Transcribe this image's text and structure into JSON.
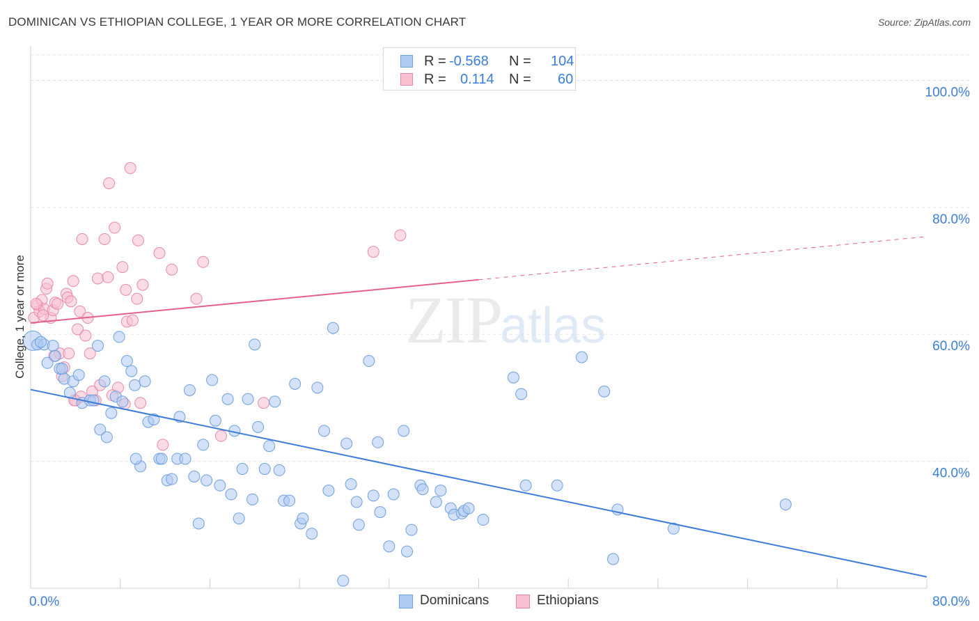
{
  "header": {
    "title": "DOMINICAN VS ETHIOPIAN COLLEGE, 1 YEAR OR MORE CORRELATION CHART",
    "source": "Source: ZipAtlas.com"
  },
  "legend_top": {
    "rows": [
      {
        "r_label": "R =",
        "r_value": "-0.568",
        "n_label": "N =",
        "n_value": "104"
      },
      {
        "r_label": "R =",
        "r_value": "0.114",
        "n_label": "N =",
        "n_value": "60"
      }
    ]
  },
  "legend_bottom": {
    "dominicans": "Dominicans",
    "ethiopians": "Ethiopians"
  },
  "colors": {
    "blue_fill": "#aecbf2",
    "blue_stroke": "#6f9fe0",
    "blue_line": "#3b7dd8",
    "pink_fill": "#f7bfd0",
    "pink_stroke": "#e889a8",
    "pink_line": "#e4608a",
    "axis_text": "#3b7dd8",
    "grid": "#e3e3e3"
  },
  "watermark": {
    "zip": "ZIP",
    "atlas": "atlas"
  },
  "chart_data": {
    "type": "scatter",
    "title": "DOMINICAN VS ETHIOPIAN COLLEGE, 1 YEAR OR MORE CORRELATION CHART",
    "xlabel": "",
    "ylabel": "College, 1 year or more",
    "xlim": [
      0,
      80
    ],
    "ylim": [
      20,
      104
    ],
    "x_tick_labels": [
      "0.0%",
      "80.0%"
    ],
    "y_ticks": [
      40,
      60,
      80,
      100
    ],
    "y_tick_labels": [
      "40.0%",
      "60.0%",
      "80.0%",
      "100.0%"
    ],
    "grid": true,
    "legend_position": "top-center",
    "series": [
      {
        "name": "Dominicans",
        "r": -0.568,
        "n": 104,
        "trend": {
          "x0": 0,
          "y0": 51.3,
          "x1": 80,
          "y1": 21.8
        },
        "points": [
          [
            0.2,
            59.0
          ],
          [
            0.6,
            58.4
          ],
          [
            1.2,
            58.4
          ],
          [
            1.5,
            55.5
          ],
          [
            2.0,
            58.2
          ],
          [
            2.2,
            56.6
          ],
          [
            2.6,
            54.6
          ],
          [
            3.0,
            53.0
          ],
          [
            3.5,
            50.8
          ],
          [
            3.8,
            52.6
          ],
          [
            4.3,
            53.6
          ],
          [
            4.6,
            49.2
          ],
          [
            5.3,
            49.6
          ],
          [
            6.0,
            58.2
          ],
          [
            6.2,
            45.0
          ],
          [
            6.6,
            52.6
          ],
          [
            6.8,
            43.8
          ],
          [
            7.2,
            47.6
          ],
          [
            7.6,
            50.2
          ],
          [
            7.9,
            59.6
          ],
          [
            8.2,
            49.4
          ],
          [
            8.6,
            55.8
          ],
          [
            9.0,
            54.2
          ],
          [
            9.3,
            52.0
          ],
          [
            9.8,
            39.2
          ],
          [
            10.2,
            52.6
          ],
          [
            10.5,
            46.2
          ],
          [
            11.0,
            46.6
          ],
          [
            11.5,
            40.4
          ],
          [
            11.7,
            40.4
          ],
          [
            12.2,
            37.0
          ],
          [
            12.6,
            37.2
          ],
          [
            13.1,
            40.4
          ],
          [
            13.3,
            47.0
          ],
          [
            13.8,
            40.4
          ],
          [
            14.2,
            51.2
          ],
          [
            14.6,
            37.6
          ],
          [
            15.0,
            30.2
          ],
          [
            15.4,
            42.6
          ],
          [
            15.7,
            37.0
          ],
          [
            16.2,
            52.8
          ],
          [
            16.5,
            46.4
          ],
          [
            16.9,
            36.2
          ],
          [
            17.6,
            49.8
          ],
          [
            17.9,
            34.8
          ],
          [
            18.2,
            44.8
          ],
          [
            18.6,
            31.0
          ],
          [
            18.9,
            38.8
          ],
          [
            19.4,
            49.8
          ],
          [
            19.8,
            34.0
          ],
          [
            20.0,
            58.4
          ],
          [
            20.3,
            45.4
          ],
          [
            20.9,
            38.8
          ],
          [
            21.3,
            42.4
          ],
          [
            21.8,
            49.4
          ],
          [
            22.2,
            38.6
          ],
          [
            22.6,
            33.8
          ],
          [
            23.1,
            33.8
          ],
          [
            23.6,
            52.2
          ],
          [
            24.1,
            30.2
          ],
          [
            24.3,
            31.0
          ],
          [
            25.1,
            28.6
          ],
          [
            25.6,
            51.6
          ],
          [
            26.2,
            44.8
          ],
          [
            27.0,
            61.0
          ],
          [
            26.6,
            35.4
          ],
          [
            28.2,
            42.8
          ],
          [
            28.6,
            36.4
          ],
          [
            29.1,
            33.6
          ],
          [
            29.3,
            30.0
          ],
          [
            30.2,
            55.8
          ],
          [
            30.6,
            34.6
          ],
          [
            31.0,
            43.0
          ],
          [
            31.2,
            32.0
          ],
          [
            32.0,
            26.6
          ],
          [
            32.4,
            34.8
          ],
          [
            33.3,
            44.8
          ],
          [
            33.6,
            25.8
          ],
          [
            34.0,
            29.2
          ],
          [
            34.8,
            36.2
          ],
          [
            35.0,
            35.6
          ],
          [
            36.2,
            33.6
          ],
          [
            37.5,
            32.6
          ],
          [
            37.8,
            31.6
          ],
          [
            38.5,
            31.8
          ],
          [
            38.7,
            32.2
          ],
          [
            39.1,
            32.6
          ],
          [
            40.4,
            30.8
          ],
          [
            43.1,
            53.2
          ],
          [
            43.8,
            50.6
          ],
          [
            44.2,
            36.2
          ],
          [
            47.0,
            36.2
          ],
          [
            49.2,
            56.4
          ],
          [
            51.2,
            51.0
          ],
          [
            52.0,
            24.6
          ],
          [
            52.4,
            32.4
          ],
          [
            57.4,
            29.4
          ],
          [
            67.4,
            33.2
          ],
          [
            27.9,
            21.2
          ],
          [
            0.9,
            58.8
          ],
          [
            2.8,
            54.6
          ],
          [
            5.6,
            49.6
          ],
          [
            9.4,
            40.4
          ],
          [
            36.6,
            35.4
          ]
        ]
      },
      {
        "name": "Ethiopians",
        "r": 0.114,
        "n": 60,
        "trend": {
          "x0": 0,
          "y0": 61.8,
          "x1": 40,
          "y1": 68.6,
          "dash_to_x": 80,
          "dash_to_y": 75.4
        },
        "points": [
          [
            0.3,
            62.6
          ],
          [
            0.6,
            64.6
          ],
          [
            0.8,
            63.6
          ],
          [
            1.0,
            65.4
          ],
          [
            1.2,
            64.0
          ],
          [
            1.4,
            67.2
          ],
          [
            1.5,
            68.0
          ],
          [
            1.8,
            62.6
          ],
          [
            2.0,
            63.8
          ],
          [
            2.2,
            65.0
          ],
          [
            2.4,
            64.8
          ],
          [
            2.6,
            57.0
          ],
          [
            2.8,
            53.4
          ],
          [
            3.0,
            54.8
          ],
          [
            3.2,
            66.4
          ],
          [
            3.3,
            65.8
          ],
          [
            3.4,
            57.0
          ],
          [
            3.6,
            65.2
          ],
          [
            3.8,
            68.4
          ],
          [
            4.0,
            49.6
          ],
          [
            4.2,
            60.8
          ],
          [
            4.4,
            63.6
          ],
          [
            4.6,
            75.0
          ],
          [
            4.9,
            59.8
          ],
          [
            5.1,
            62.6
          ],
          [
            5.3,
            57.0
          ],
          [
            5.5,
            51.0
          ],
          [
            5.8,
            49.6
          ],
          [
            6.0,
            68.8
          ],
          [
            6.2,
            52.0
          ],
          [
            6.6,
            75.0
          ],
          [
            6.9,
            69.0
          ],
          [
            7.0,
            83.8
          ],
          [
            7.5,
            76.8
          ],
          [
            7.8,
            51.6
          ],
          [
            8.2,
            70.6
          ],
          [
            8.5,
            67.0
          ],
          [
            8.6,
            62.0
          ],
          [
            8.9,
            86.2
          ],
          [
            9.1,
            62.2
          ],
          [
            9.5,
            65.6
          ],
          [
            9.6,
            74.8
          ],
          [
            10.0,
            67.8
          ],
          [
            9.8,
            49.2
          ],
          [
            11.5,
            72.8
          ],
          [
            11.8,
            42.6
          ],
          [
            12.6,
            70.2
          ],
          [
            14.8,
            65.6
          ],
          [
            15.4,
            71.4
          ],
          [
            17.0,
            44.0
          ],
          [
            20.8,
            49.2
          ],
          [
            30.6,
            73.0
          ],
          [
            33.0,
            75.6
          ],
          [
            1.1,
            63.0
          ],
          [
            3.9,
            49.6
          ],
          [
            7.3,
            50.4
          ],
          [
            0.5,
            64.8
          ],
          [
            2.1,
            56.6
          ],
          [
            4.5,
            50.2
          ],
          [
            8.4,
            49.0
          ]
        ]
      }
    ]
  }
}
